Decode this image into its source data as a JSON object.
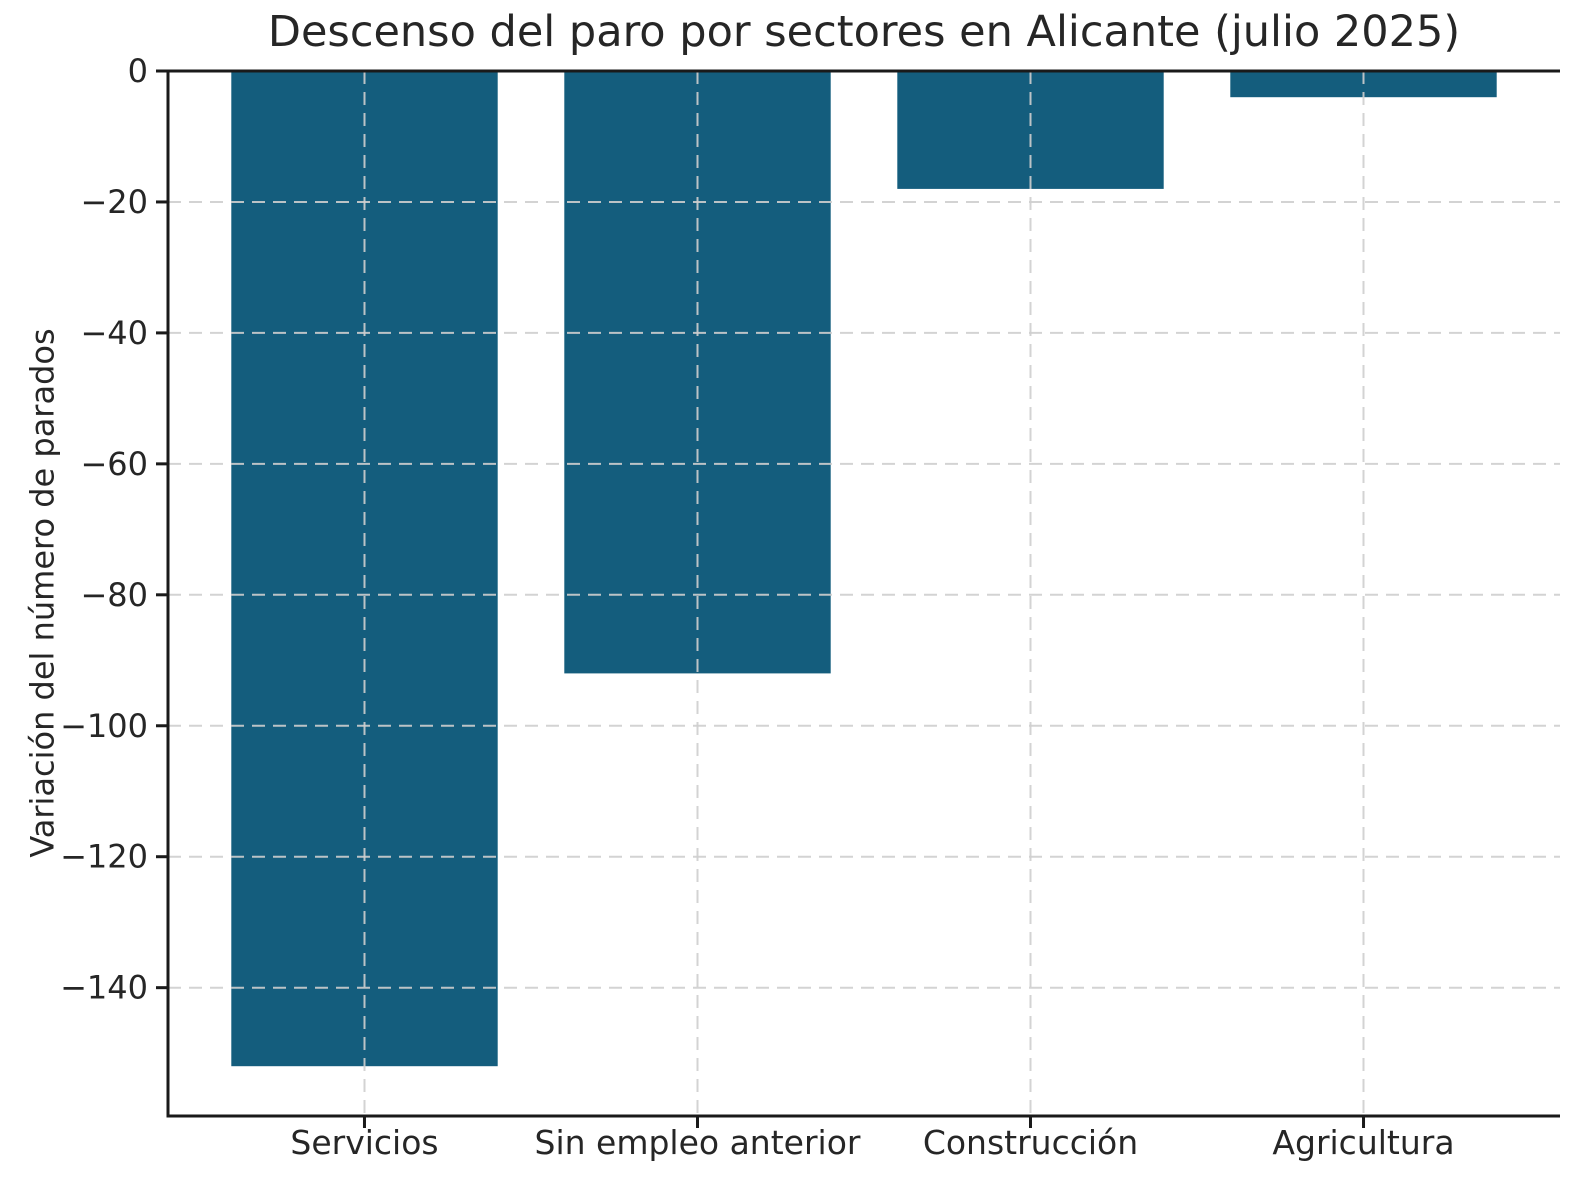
{
  "chart_data": {
    "type": "bar",
    "title": "Descenso del paro por sectores en Alicante (julio 2025)",
    "ylabel": "Variación del número de parados",
    "xlabel": "",
    "categories": [
      "Servicios",
      "Sin empleo anterior",
      "Construcción",
      "Agricultura"
    ],
    "values": [
      -152,
      -92,
      -18,
      -4
    ],
    "bar_width": 0.8,
    "xlim": [
      -0.59,
      3.59
    ],
    "ylim": [
      -159.6,
      0
    ],
    "yticks": {
      "values": [
        0,
        -20,
        -40,
        -60,
        -80,
        -100,
        -120,
        -140
      ],
      "labels": [
        "0",
        "−20",
        "−40",
        "−60",
        "−80",
        "−100",
        "−120",
        "−140"
      ]
    },
    "grid": {
      "visible": true,
      "style": "dashed",
      "on_top": true
    },
    "legend": "none"
  },
  "colors": {
    "bar": "#145d7d",
    "spine": "#1a1a1a",
    "tick": "#1a1a1a",
    "grid": "#cfcfcf",
    "text": "#262626",
    "background": "#ffffff"
  }
}
